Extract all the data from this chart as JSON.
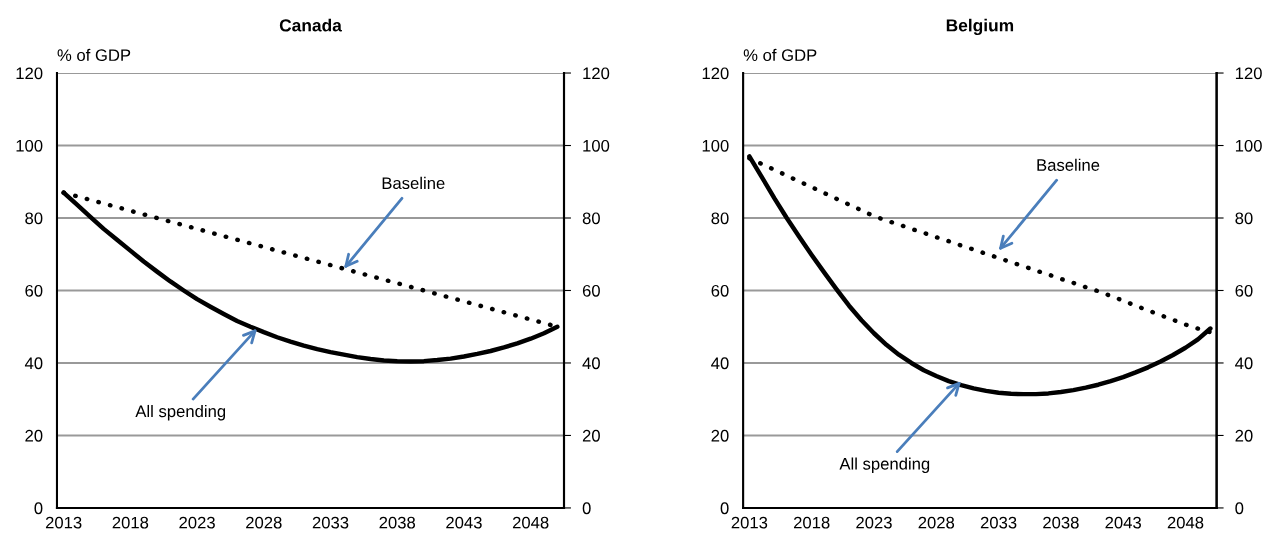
{
  "chart_data": [
    {
      "type": "line",
      "title": "Canada",
      "ylabel": "% of GDP",
      "x": [
        2013,
        2014,
        2015,
        2016,
        2017,
        2018,
        2019,
        2020,
        2021,
        2022,
        2023,
        2024,
        2025,
        2026,
        2027,
        2028,
        2029,
        2030,
        2031,
        2032,
        2033,
        2034,
        2035,
        2036,
        2037,
        2038,
        2039,
        2040,
        2041,
        2042,
        2043,
        2044,
        2045,
        2046,
        2047,
        2048,
        2049,
        2050
      ],
      "xlim": [
        2012.5,
        2050.5
      ],
      "xticks": [
        2013,
        2018,
        2023,
        2028,
        2033,
        2038,
        2043,
        2048
      ],
      "ylim": [
        0,
        120
      ],
      "yticks": [
        0,
        20,
        40,
        60,
        80,
        100,
        120
      ],
      "y2lim": [
        0,
        120
      ],
      "y2ticks": [
        0,
        20,
        40,
        60,
        80,
        100,
        120
      ],
      "grid": "y",
      "legend": false,
      "series": [
        {
          "color": "#000000",
          "line_style": "dotted",
          "values": [
            87,
            86,
            85,
            84,
            83,
            82,
            81,
            80,
            79,
            78,
            77,
            76,
            75,
            74,
            73,
            72,
            71,
            70,
            69,
            68,
            67,
            66,
            65,
            64,
            63,
            62,
            61,
            60,
            59,
            58,
            57,
            56,
            55,
            54,
            53,
            52,
            51,
            50
          ]
        },
        {
          "color": "#000000",
          "line_style": "solid",
          "values": [
            87,
            83.7,
            80.3,
            77,
            74,
            71,
            68,
            65.2,
            62.5,
            60,
            57.6,
            55.5,
            53.5,
            51.6,
            50,
            48.5,
            47.1,
            45.9,
            44.8,
            43.8,
            43,
            42.3,
            41.6,
            41.1,
            40.7,
            40.5,
            40.4,
            40.5,
            40.8,
            41.2,
            41.8,
            42.5,
            43.3,
            44.3,
            45.4,
            46.7,
            48.2,
            50
          ]
        }
      ],
      "annotations": [
        {
          "text": "Baseline",
          "x": 2034,
          "y": 66
        },
        {
          "text": "All spending",
          "x": 2027.5,
          "y": 49.5
        }
      ]
    },
    {
      "type": "line",
      "title": "Belgium",
      "ylabel": "% of GDP",
      "x": [
        2013,
        2014,
        2015,
        2016,
        2017,
        2018,
        2019,
        2020,
        2021,
        2022,
        2023,
        2024,
        2025,
        2026,
        2027,
        2028,
        2029,
        2030,
        2031,
        2032,
        2033,
        2034,
        2035,
        2036,
        2037,
        2038,
        2039,
        2040,
        2041,
        2042,
        2043,
        2044,
        2045,
        2046,
        2047,
        2048,
        2049,
        2050
      ],
      "xlim": [
        2012.5,
        2050.5
      ],
      "xticks": [
        2013,
        2018,
        2023,
        2028,
        2033,
        2038,
        2043,
        2048
      ],
      "ylim": [
        0,
        120
      ],
      "yticks": [
        0,
        20,
        40,
        60,
        80,
        100,
        120
      ],
      "y2lim": [
        0,
        120
      ],
      "y2ticks": [
        0,
        20,
        40,
        60,
        80,
        100,
        120
      ],
      "grid": "y",
      "legend": false,
      "series": [
        {
          "color": "#000000",
          "line_style": "dotted",
          "values": [
            96.5,
            94.9,
            93.3,
            91.7,
            90.1,
            88.5,
            86.9,
            85.3,
            83.7,
            82.1,
            80.5,
            79.3,
            78.2,
            77,
            75.9,
            74.7,
            73.6,
            72.4,
            71.3,
            70.1,
            69,
            67.8,
            66.7,
            65.5,
            64.4,
            63.2,
            62.1,
            60.9,
            59.8,
            58.5,
            57.2,
            55.8,
            54.5,
            53.2,
            51.9,
            50.6,
            49.5,
            48.5
          ]
        },
        {
          "color": "#000000",
          "line_style": "solid",
          "values": [
            97,
            91.3,
            85.5,
            80,
            74.8,
            69.8,
            65,
            60.3,
            55.8,
            51.8,
            48.2,
            45,
            42.3,
            40,
            38,
            36.4,
            35,
            33.9,
            33,
            32.3,
            31.8,
            31.5,
            31.4,
            31.4,
            31.6,
            32,
            32.5,
            33.2,
            34,
            35,
            36.1,
            37.4,
            38.8,
            40.4,
            42.2,
            44.2,
            46.5,
            49.5
          ]
        }
      ],
      "annotations": [
        {
          "text": "Baseline",
          "x": 2033,
          "y": 71
        },
        {
          "text": "All spending",
          "x": 2030,
          "y": 35
        }
      ]
    }
  ]
}
